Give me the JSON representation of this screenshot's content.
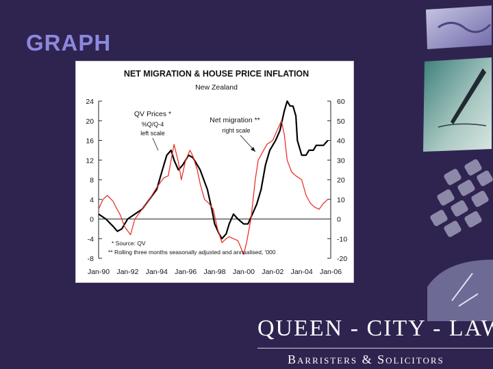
{
  "slide": {
    "title": "GRAPH"
  },
  "footer": {
    "firm_name": "QUEEN - CITY - LAW",
    "tagline": "Barristers & Solicitors"
  },
  "colors": {
    "background": "#2f2450",
    "title": "#8c88dc",
    "qv_line": "#000000",
    "migration_line": "#e8322a"
  },
  "chart_data": {
    "type": "line",
    "title": "NET MIGRATION & HOUSE PRICE INFLATION",
    "subtitle": "New Zealand",
    "x_ticks": [
      "Jan-90",
      "Jan-92",
      "Jan-94",
      "Jan-96",
      "Jan-98",
      "Jan-00",
      "Jan-02",
      "Jan-04",
      "Jan-06"
    ],
    "x_range": [
      1990.0,
      2006.0
    ],
    "y_left_ticks": [
      24,
      20,
      16,
      12,
      8,
      4,
      0,
      -4,
      -8
    ],
    "y_left_range": [
      -8,
      24
    ],
    "y_right_ticks": [
      60,
      50,
      40,
      30,
      20,
      10,
      0,
      -10,
      -20
    ],
    "y_right_range": [
      -20,
      60
    ],
    "annotations": {
      "qv": [
        "QV Prices *",
        "%Q/Q-4",
        "left scale"
      ],
      "migration": [
        "Net migration **",
        "right scale"
      ],
      "notes": [
        "* Source: QV",
        "** Rolling three months seasonally adjusted and annualised, '000"
      ]
    },
    "series": [
      {
        "name": "QV Prices",
        "axis": "left",
        "x": [
          1990.0,
          1990.5,
          1991.0,
          1991.3,
          1991.6,
          1992.0,
          1992.5,
          1993.0,
          1993.5,
          1994.0,
          1994.3,
          1994.5,
          1994.7,
          1995.0,
          1995.2,
          1995.5,
          1995.8,
          1996.0,
          1996.2,
          1996.5,
          1996.8,
          1997.0,
          1997.5,
          1997.8,
          1998.0,
          1998.3,
          1998.5,
          1998.8,
          1999.0,
          1999.3,
          1999.6,
          2000.0,
          2000.3,
          2000.6,
          2000.9,
          2001.2,
          2001.5,
          2001.8,
          2002.2,
          2002.5,
          2002.8,
          2003.0,
          2003.2,
          2003.4,
          2003.6,
          2003.7,
          2004.0,
          2004.3,
          2004.5,
          2004.8,
          2005.0,
          2005.5,
          2005.8
        ],
        "values": [
          1,
          0,
          -1.5,
          -2.5,
          -2,
          0,
          1,
          2,
          4,
          6,
          9,
          11,
          13,
          14,
          12,
          10,
          11,
          12,
          13,
          12.5,
          11,
          10,
          6,
          2,
          -1,
          -3,
          -4,
          -3,
          -1,
          1,
          0,
          -1,
          -1,
          1,
          3,
          6,
          11,
          14,
          16,
          18,
          22,
          24,
          23,
          23,
          21,
          16,
          13,
          13,
          14,
          14,
          15,
          15,
          16
        ]
      },
      {
        "name": "Net migration",
        "axis": "right",
        "x": [
          1990.0,
          1990.3,
          1990.6,
          1991.0,
          1991.2,
          1991.5,
          1991.8,
          1992.2,
          1992.5,
          1993.0,
          1993.5,
          1994.0,
          1994.5,
          1994.8,
          1995.0,
          1995.2,
          1995.5,
          1995.7,
          1996.0,
          1996.3,
          1996.5,
          1996.8,
          1997.0,
          1997.3,
          1997.6,
          1997.9,
          1998.2,
          1998.5,
          1998.8,
          1999.0,
          1999.3,
          1999.6,
          2000.0,
          2000.2,
          2000.5,
          2000.8,
          2001.0,
          2001.3,
          2001.6,
          2002.0,
          2002.3,
          2002.6,
          2002.8,
          2003.0,
          2003.3,
          2003.6,
          2004.0,
          2004.3,
          2004.6,
          2004.9,
          2005.2,
          2005.5,
          2005.8
        ],
        "values": [
          5,
          10,
          12,
          9,
          6,
          2,
          -4,
          -8,
          0,
          5,
          10,
          16,
          21,
          22,
          30,
          38,
          29,
          20,
          30,
          35,
          32,
          25,
          18,
          10,
          8,
          5,
          -5,
          -12,
          -10,
          -9,
          -10,
          -11,
          -18,
          -12,
          0,
          20,
          30,
          34,
          38,
          40,
          45,
          50,
          43,
          30,
          24,
          22,
          20,
          12,
          8,
          6,
          5,
          8,
          10
        ]
      }
    ]
  }
}
